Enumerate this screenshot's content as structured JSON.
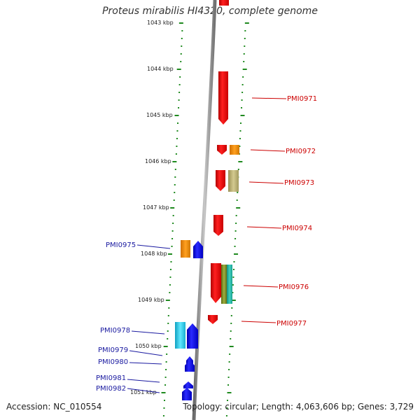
{
  "title": "Proteus mirabilis HI4320, complete genome",
  "footer": {
    "accession": "Accession: NC_010554",
    "topology": "Topology: circular; Length: 4,063,606 bp; Genes: 3,729"
  },
  "colors": {
    "forward_label": "#cc0000",
    "reverse_label": "#1a1aa0",
    "ticks": "#1f8a1f",
    "backbone": "#8c8c8c"
  },
  "kbp_labels": [
    "1043 kbp",
    "1044 kbp",
    "1045 kbp",
    "1046 kbp",
    "1047 kbp",
    "1048 kbp",
    "1049 kbp",
    "1050 kbp",
    "1051 kbp"
  ],
  "genes_forward": [
    "PMI0971",
    "PMI0972",
    "PMI0973",
    "PMI0974",
    "PMI0976",
    "PMI0977"
  ],
  "genes_reverse": [
    "PMI0975",
    "PMI0978",
    "PMI0979",
    "PMI0980",
    "PMI0981",
    "PMI0982"
  ]
}
